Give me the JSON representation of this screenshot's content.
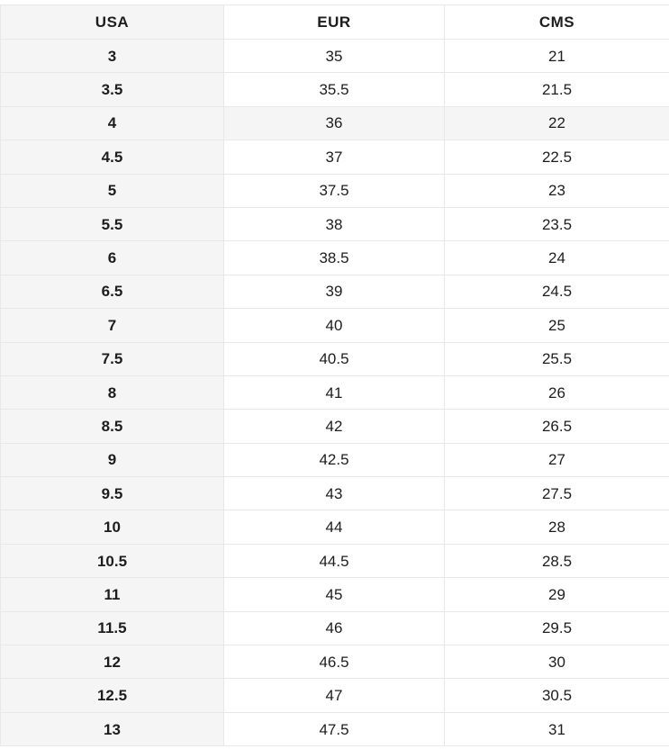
{
  "chart_data": {
    "type": "table",
    "columns": [
      "USA",
      "EUR",
      "CMS"
    ],
    "rows": [
      [
        "3",
        "35",
        "21"
      ],
      [
        "3.5",
        "35.5",
        "21.5"
      ],
      [
        "4",
        "36",
        "22"
      ],
      [
        "4.5",
        "37",
        "22.5"
      ],
      [
        "5",
        "37.5",
        "23"
      ],
      [
        "5.5",
        "38",
        "23.5"
      ],
      [
        "6",
        "38.5",
        "24"
      ],
      [
        "6.5",
        "39",
        "24.5"
      ],
      [
        "7",
        "40",
        "25"
      ],
      [
        "7.5",
        "40.5",
        "25.5"
      ],
      [
        "8",
        "41",
        "26"
      ],
      [
        "8.5",
        "42",
        "26.5"
      ],
      [
        "9",
        "42.5",
        "27"
      ],
      [
        "9.5",
        "43",
        "27.5"
      ],
      [
        "10",
        "44",
        "28"
      ],
      [
        "10.5",
        "44.5",
        "28.5"
      ],
      [
        "11",
        "45",
        "29"
      ],
      [
        "11.5",
        "46",
        "29.5"
      ],
      [
        "12",
        "46.5",
        "30"
      ],
      [
        "12.5",
        "47",
        "30.5"
      ],
      [
        "13",
        "47.5",
        "31"
      ]
    ],
    "highlighted_row_index": 2,
    "title": "",
    "layout_hints": {
      "grid": true,
      "first_column_shaded": true,
      "header_position": "top"
    }
  },
  "colors": {
    "row_stripe": "#f5f5f5",
    "border": "#e8e8e8",
    "text": "#1d1d1d",
    "background": "#ffffff"
  }
}
